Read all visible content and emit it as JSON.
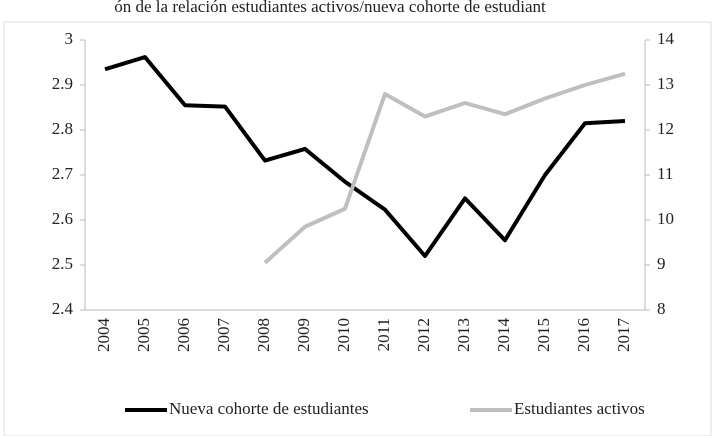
{
  "chart_data": {
    "type": "line",
    "title": "ón de la relación estudiantes activos/nueva cohorte de estudiant",
    "categories": [
      "2004",
      "2005",
      "2006",
      "2007",
      "2008",
      "2009",
      "2010",
      "2011",
      "2012",
      "2013",
      "2014",
      "2015",
      "2016",
      "2017"
    ],
    "series": [
      {
        "name": "Nueva cohorte de estudiantes",
        "color": "#000000",
        "axis": "y",
        "values": [
          2.935,
          2.962,
          2.855,
          2.852,
          2.732,
          2.758,
          2.685,
          2.623,
          2.52,
          2.648,
          2.555,
          2.7,
          2.815,
          2.82
        ]
      },
      {
        "name": "Estudiantes activos",
        "color": "#bfbfbf",
        "axis": "y2",
        "values": [
          null,
          null,
          null,
          null,
          9.05,
          9.85,
          10.25,
          12.8,
          12.3,
          12.6,
          12.35,
          12.7,
          13.0,
          13.25
        ]
      }
    ],
    "ylim": [
      2.4,
      3
    ],
    "yticks": [
      2.4,
      2.5,
      2.6,
      2.7,
      2.8,
      2.9,
      3
    ],
    "y2lim": [
      8,
      14
    ],
    "y2ticks": [
      8,
      9,
      10,
      11,
      12,
      13,
      14
    ],
    "grid": false
  }
}
